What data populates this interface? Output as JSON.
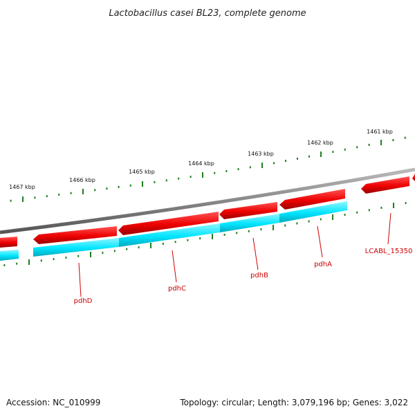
{
  "title": "Lactobacillus casei BL23, complete genome",
  "footer": {
    "accession": "Accession: NC_010999",
    "summary": "Topology: circular; Length: 3,079,196 bp; Genes: 3,022"
  },
  "ticks": [
    {
      "label": "1461 kbp",
      "kbp": 1461
    },
    {
      "label": "1462 kbp",
      "kbp": 1462
    },
    {
      "label": "1463 kbp",
      "kbp": 1463
    },
    {
      "label": "1464 kbp",
      "kbp": 1464
    },
    {
      "label": "1465 kbp",
      "kbp": 1465
    },
    {
      "label": "1466 kbp",
      "kbp": 1466
    },
    {
      "label": "1467 kbp",
      "kbp": 1467
    }
  ],
  "genes": [
    {
      "name": "pdhD",
      "strand": "reverse"
    },
    {
      "name": "pdhC",
      "strand": "reverse"
    },
    {
      "name": "pdhB",
      "strand": "reverse"
    },
    {
      "name": "pdhA",
      "strand": "reverse"
    },
    {
      "name": "LCABL_15350",
      "strand": "reverse"
    }
  ],
  "colors": {
    "cds": "#ee0000",
    "gene": "#00e5ff",
    "backbone": "#888888",
    "ticks": "#1e7e1e",
    "label": "#cc0000"
  }
}
